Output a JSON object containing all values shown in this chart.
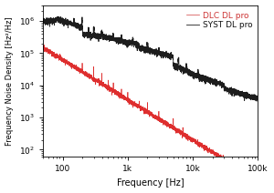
{
  "title": "",
  "xlabel": "Frequency [Hz]",
  "ylabel": "Frequency Noise Density [Hz²/Hz]",
  "xlim": [
    50,
    100000
  ],
  "ylim": [
    60,
    3000000
  ],
  "legend_labels": [
    "DLC DL pro",
    "SYST DL pro"
  ],
  "legend_colors": [
    "#cc3333",
    "#111111"
  ],
  "background_color": "#ffffff",
  "line_color_dlc": "#dd2222",
  "line_color_syst": "#111111",
  "seed": 12345,
  "npts": 5000
}
